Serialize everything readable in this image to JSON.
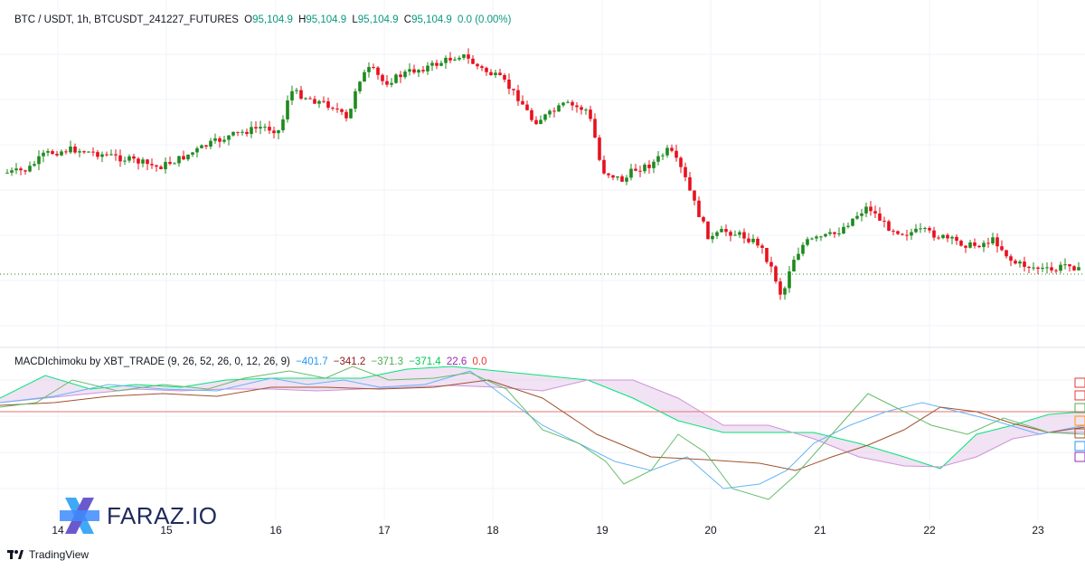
{
  "header": {
    "symbol": "BTC / USDT, 1h, BTCUSDT_241227_FUTURES",
    "o_label": "O",
    "o_value": "95,104.9",
    "h_label": "H",
    "h_value": "95,104.9",
    "l_label": "L",
    "l_value": "95,104.9",
    "c_label": "C",
    "c_value": "95,104.9",
    "change": "0.0 (0.00%)"
  },
  "indicator": {
    "name": "MACDIchimoku by XBT_TRADE (9, 26, 52, 26, 0, 12, 26, 9)",
    "values": [
      {
        "text": "−401.7",
        "color": "#2196f3"
      },
      {
        "text": "−341.2",
        "color": "#8b1a1a"
      },
      {
        "text": "−371.3",
        "color": "#4caf50"
      },
      {
        "text": "−371.4",
        "color": "#00e676"
      },
      {
        "text": "22.6",
        "color": "#9c27b0"
      },
      {
        "text": "0.0",
        "color": "#e53935"
      }
    ]
  },
  "colors": {
    "up": "#1e8a1e",
    "down": "#e8101e",
    "value_green": "#089981"
  },
  "watermark": {
    "text": "FARAZ.IO"
  },
  "branding": {
    "text": "TradingView"
  },
  "chart_data": {
    "type": "candlestick",
    "x_ticks": [
      "14",
      "15",
      "16",
      "17",
      "18",
      "19",
      "20",
      "21",
      "22",
      "23"
    ],
    "last_price": 95104.9,
    "series": [
      {
        "name": "price",
        "description": "hourly close path",
        "points": [
          [
            0,
            192
          ],
          [
            30,
            188
          ],
          [
            50,
            170
          ],
          [
            80,
            165
          ],
          [
            110,
            170
          ],
          [
            150,
            178
          ],
          [
            175,
            185
          ],
          [
            200,
            175
          ],
          [
            230,
            160
          ],
          [
            255,
            150
          ],
          [
            290,
            140
          ],
          [
            310,
            145
          ],
          [
            320,
            100
          ],
          [
            345,
            110
          ],
          [
            370,
            118
          ],
          [
            385,
            135
          ],
          [
            395,
            90
          ],
          [
            410,
            75
          ],
          [
            425,
            92
          ],
          [
            450,
            80
          ],
          [
            480,
            72
          ],
          [
            510,
            60
          ],
          [
            530,
            75
          ],
          [
            555,
            88
          ],
          [
            575,
            110
          ],
          [
            590,
            135
          ],
          [
            610,
            125
          ],
          [
            625,
            115
          ],
          [
            650,
            122
          ],
          [
            660,
            160
          ],
          [
            665,
            188
          ],
          [
            690,
            200
          ],
          [
            700,
            188
          ],
          [
            720,
            182
          ],
          [
            740,
            165
          ],
          [
            755,
            190
          ],
          [
            770,
            230
          ],
          [
            785,
            265
          ],
          [
            800,
            255
          ],
          [
            820,
            260
          ],
          [
            840,
            270
          ],
          [
            855,
            300
          ],
          [
            865,
            330
          ],
          [
            875,
            290
          ],
          [
            890,
            268
          ],
          [
            910,
            262
          ],
          [
            925,
            258
          ],
          [
            945,
            240
          ],
          [
            960,
            228
          ],
          [
            980,
            250
          ],
          [
            1000,
            258
          ],
          [
            1020,
            255
          ],
          [
            1050,
            265
          ],
          [
            1075,
            272
          ],
          [
            1100,
            265
          ],
          [
            1120,
            290
          ],
          [
            1140,
            295
          ],
          [
            1165,
            300
          ],
          [
            1182,
            290
          ],
          [
            1200,
            305
          ]
        ]
      }
    ]
  }
}
